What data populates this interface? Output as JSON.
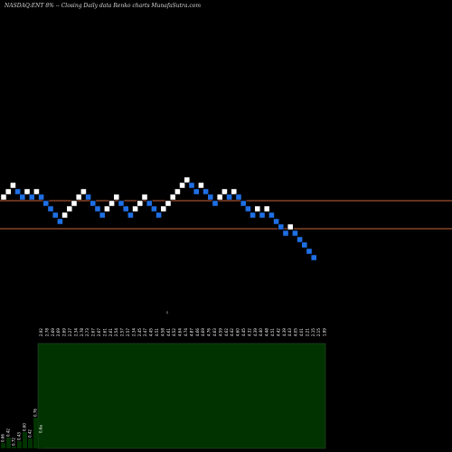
{
  "title": "NASDAQ:ENT 8% --  Closing Daily data  Renko  charts MunafaSutra.com",
  "marker": "s",
  "colors": {
    "background": "#000000",
    "up_brick": "#ffffff",
    "down_brick": "#1f6fe5",
    "reference_line": "#c8643c",
    "volume_panel": "#003300",
    "volume_border": "#2b4d2b"
  },
  "chart_data": {
    "type": "renko",
    "reference_lines": [
      4.6,
      3.79
    ],
    "bricks": [
      {
        "level": 4.72,
        "dir": "up"
      },
      {
        "level": 4.78,
        "dir": "up"
      },
      {
        "level": 4.85,
        "dir": "up"
      },
      {
        "level": 4.78,
        "dir": "down"
      },
      {
        "level": 4.72,
        "dir": "down"
      },
      {
        "level": 4.78,
        "dir": "up"
      },
      {
        "level": 4.72,
        "dir": "down"
      },
      {
        "level": 4.78,
        "dir": "up"
      },
      {
        "level": 4.72,
        "dir": "down"
      },
      {
        "level": 4.65,
        "dir": "down"
      },
      {
        "level": 4.59,
        "dir": "down"
      },
      {
        "level": 4.52,
        "dir": "down"
      },
      {
        "level": 4.45,
        "dir": "down"
      },
      {
        "level": 4.52,
        "dir": "up"
      },
      {
        "level": 4.59,
        "dir": "up"
      },
      {
        "level": 4.65,
        "dir": "up"
      },
      {
        "level": 4.72,
        "dir": "up"
      },
      {
        "level": 4.78,
        "dir": "up"
      },
      {
        "level": 4.72,
        "dir": "down"
      },
      {
        "level": 4.65,
        "dir": "down"
      },
      {
        "level": 4.59,
        "dir": "down"
      },
      {
        "level": 4.52,
        "dir": "down"
      },
      {
        "level": 4.59,
        "dir": "up"
      },
      {
        "level": 4.65,
        "dir": "up"
      },
      {
        "level": 4.72,
        "dir": "up"
      },
      {
        "level": 4.65,
        "dir": "down"
      },
      {
        "level": 4.59,
        "dir": "down"
      },
      {
        "level": 4.52,
        "dir": "down"
      },
      {
        "level": 4.59,
        "dir": "up"
      },
      {
        "level": 4.65,
        "dir": "up"
      },
      {
        "level": 4.72,
        "dir": "up"
      },
      {
        "level": 4.65,
        "dir": "down"
      },
      {
        "level": 4.59,
        "dir": "down"
      },
      {
        "level": 4.52,
        "dir": "down"
      },
      {
        "level": 4.59,
        "dir": "up"
      },
      {
        "level": 4.65,
        "dir": "up"
      },
      {
        "level": 4.72,
        "dir": "up"
      },
      {
        "level": 4.78,
        "dir": "up"
      },
      {
        "level": 4.85,
        "dir": "up"
      },
      {
        "level": 4.91,
        "dir": "up"
      },
      {
        "level": 4.85,
        "dir": "down"
      },
      {
        "level": 4.78,
        "dir": "down"
      },
      {
        "level": 4.85,
        "dir": "up"
      },
      {
        "level": 4.78,
        "dir": "down"
      },
      {
        "level": 4.72,
        "dir": "down"
      },
      {
        "level": 4.65,
        "dir": "down"
      },
      {
        "level": 4.72,
        "dir": "up"
      },
      {
        "level": 4.78,
        "dir": "up"
      },
      {
        "level": 4.72,
        "dir": "down"
      },
      {
        "level": 4.78,
        "dir": "up"
      },
      {
        "level": 4.72,
        "dir": "down"
      },
      {
        "level": 4.65,
        "dir": "down"
      },
      {
        "level": 4.59,
        "dir": "down"
      },
      {
        "level": 4.52,
        "dir": "down"
      },
      {
        "level": 4.59,
        "dir": "up"
      },
      {
        "level": 4.52,
        "dir": "down"
      },
      {
        "level": 4.59,
        "dir": "up"
      },
      {
        "level": 4.52,
        "dir": "down"
      },
      {
        "level": 4.45,
        "dir": "down"
      },
      {
        "level": 4.39,
        "dir": "down"
      },
      {
        "level": 4.32,
        "dir": "down"
      },
      {
        "level": 4.39,
        "dir": "up"
      },
      {
        "level": 4.32,
        "dir": "down"
      },
      {
        "level": 4.25,
        "dir": "down"
      },
      {
        "level": 4.19,
        "dir": "down"
      },
      {
        "level": 4.12,
        "dir": "down"
      },
      {
        "level": 4.05,
        "dir": "down"
      }
    ],
    "price_labels": [
      "2.92",
      "2.78",
      "2.69",
      "2.69",
      "2.69",
      "2.27",
      "2.34",
      "2.78",
      "2.73",
      "2.67",
      "2.67",
      "2.61",
      "2.61",
      "2.54",
      "2.57",
      "2.57",
      "2.34",
      "2.45",
      "2.47",
      "4.45",
      "4.51",
      "4.58",
      "4.61",
      "4.52",
      "4.64",
      "4.74",
      "4.87",
      "4.66",
      "4.69",
      "4.76",
      "4.63",
      "4.59",
      "4.62",
      "4.42",
      "4.60",
      "4.45",
      "4.32",
      "4.39",
      "4.40",
      "4.48",
      "4.51",
      "4.42",
      "4.39",
      "4.43",
      "4.05",
      "4.01",
      "2.21",
      "2.15",
      "2.15",
      "1.99"
    ],
    "volume_labels": [
      "0.66",
      "0.42",
      "0.72",
      "0.43",
      "0.60",
      "0.42",
      "0.76",
      "0.6a"
    ]
  }
}
